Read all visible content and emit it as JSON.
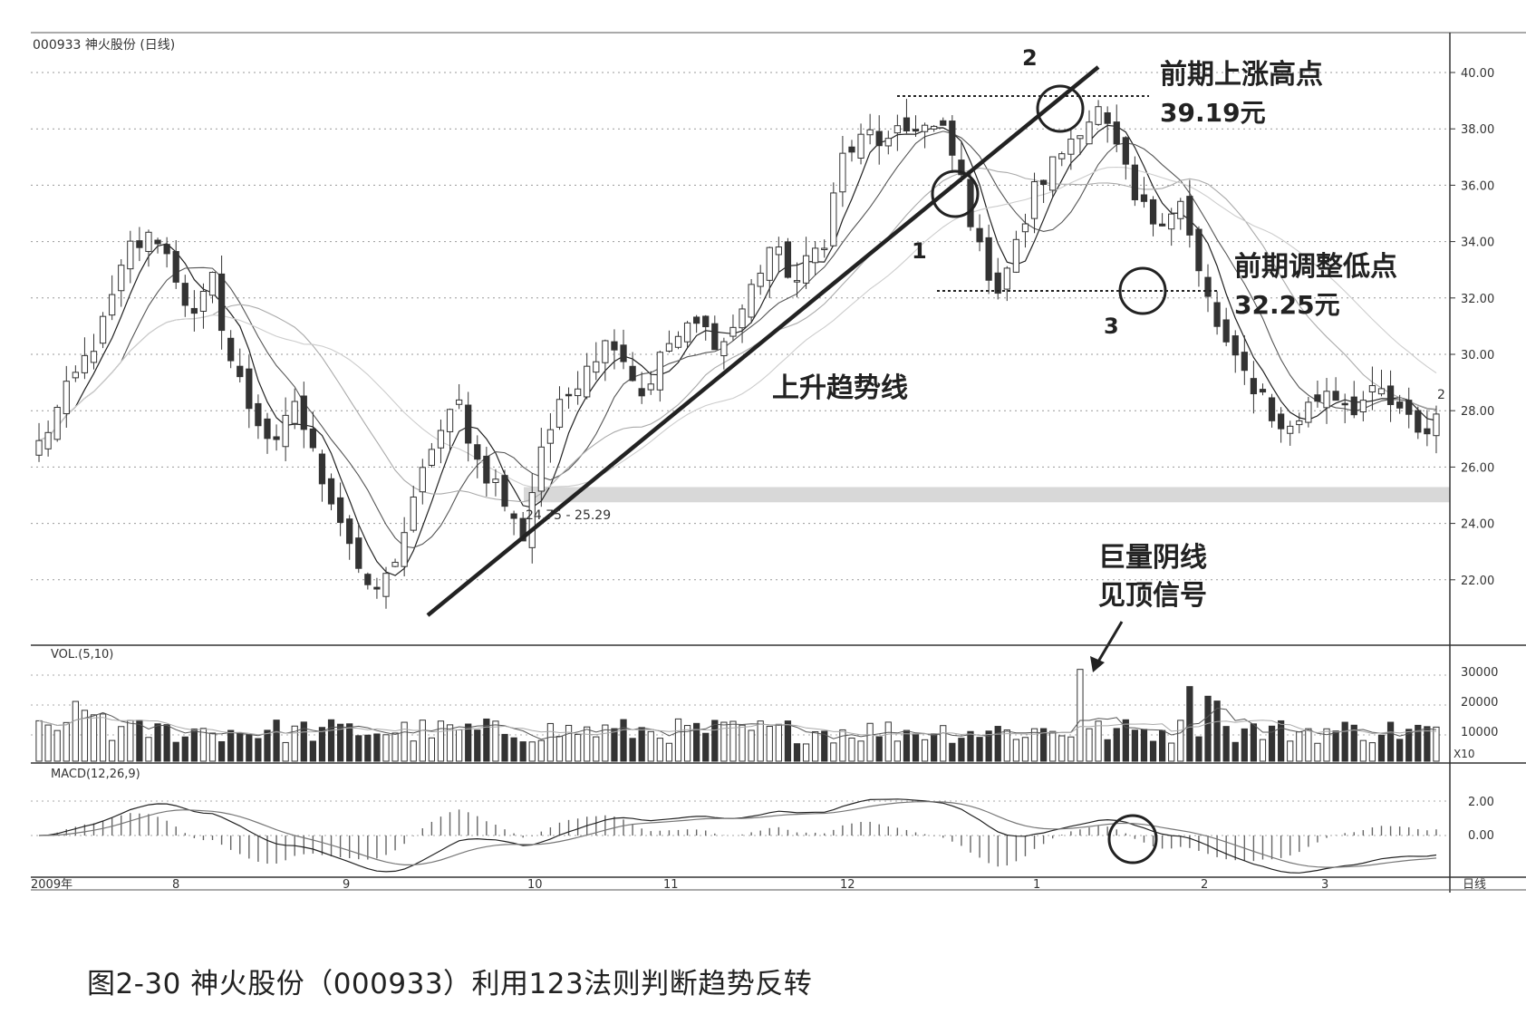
{
  "header": {
    "stock_label": "000933 神火股份 (日线)"
  },
  "caption": "图2-30 神火股份（000933）利用123法则判断趋势反转",
  "chart_data": {
    "type": "candlestick",
    "price_axis": {
      "ticks": [
        22,
        24,
        26,
        28,
        30,
        32,
        34,
        36,
        38,
        40
      ],
      "labels": [
        "22.00",
        "24.00",
        "26.00",
        "28.00",
        "30.00",
        "32.00",
        "34.00",
        "36.00",
        "38.00",
        "40.00"
      ],
      "range": [
        20.0,
        41.5
      ]
    },
    "x_axis": {
      "labels": [
        "2009年",
        "8",
        "9",
        "10",
        "11",
        "12",
        "1",
        "2",
        "3",
        "日线"
      ]
    },
    "price_path": {
      "num_bars": 154,
      "anchors": [
        [
          0,
          26.8
        ],
        [
          7,
          31.0
        ],
        [
          10,
          33.8
        ],
        [
          13,
          34.2
        ],
        [
          15,
          32.8
        ],
        [
          17,
          31.2
        ],
        [
          19,
          32.6
        ],
        [
          21,
          29.8
        ],
        [
          23,
          28.2
        ],
        [
          26,
          26.6
        ],
        [
          28,
          28.4
        ],
        [
          30,
          26.4
        ],
        [
          32,
          25.0
        ],
        [
          34,
          23.4
        ],
        [
          36,
          21.4
        ],
        [
          38,
          22.0
        ],
        [
          41,
          24.6
        ],
        [
          43,
          26.8
        ],
        [
          46,
          28.2
        ],
        [
          48,
          26.2
        ],
        [
          50,
          25.4
        ],
        [
          52,
          24.0
        ],
        [
          53,
          23.6
        ],
        [
          55,
          26.8
        ],
        [
          58,
          28.6
        ],
        [
          60,
          29.8
        ],
        [
          63,
          30.6
        ],
        [
          66,
          28.6
        ],
        [
          69,
          30.4
        ],
        [
          72,
          31.0
        ],
        [
          75,
          30.4
        ],
        [
          77,
          31.6
        ],
        [
          80,
          33.8
        ],
        [
          83,
          32.6
        ],
        [
          86,
          34.2
        ],
        [
          88,
          37.0
        ],
        [
          91,
          37.8
        ],
        [
          93,
          37.4
        ],
        [
          96,
          38.2
        ],
        [
          99,
          37.8
        ],
        [
          101,
          36.2
        ],
        [
          103,
          33.6
        ],
        [
          105,
          32.4
        ],
        [
          107,
          33.8
        ],
        [
          109,
          35.8
        ],
        [
          112,
          37.2
        ],
        [
          114,
          38.2
        ],
        [
          116,
          38.6
        ],
        [
          118,
          37.2
        ],
        [
          120,
          35.4
        ],
        [
          122,
          34.8
        ],
        [
          124,
          35.2
        ],
        [
          125,
          35.4
        ],
        [
          127,
          32.8
        ],
        [
          129,
          31.0
        ],
        [
          131,
          29.6
        ],
        [
          134,
          28.6
        ],
        [
          136,
          27.2
        ],
        [
          138,
          27.8
        ],
        [
          141,
          28.8
        ],
        [
          144,
          28.2
        ],
        [
          147,
          28.6
        ],
        [
          149,
          27.8
        ],
        [
          152,
          27.2
        ],
        [
          154,
          28.6
        ]
      ]
    },
    "volume_axis": {
      "label": "VOL.(5,10)",
      "ticks": [
        "30000",
        "20000",
        "10000"
      ],
      "unit": "X10"
    },
    "macd_axis": {
      "label": "MACD(12,26,9)",
      "ticks": [
        "2.00",
        "0.00"
      ]
    },
    "support_band": {
      "label": "24.75 - 25.29",
      "low": 24.75,
      "high": 25.29
    },
    "annotations": {
      "point1_label": "1",
      "point2_label": "2",
      "point3_label": "3",
      "high_title": "前期上涨高点",
      "high_value": "39.19元",
      "low_title": "前期调整低点",
      "low_value": "32.25元",
      "trendline_label": "上升趋势线",
      "volume_note_line1": "巨量阴线",
      "volume_note_line2": "见顶信号",
      "right_edge_label": "2"
    }
  }
}
